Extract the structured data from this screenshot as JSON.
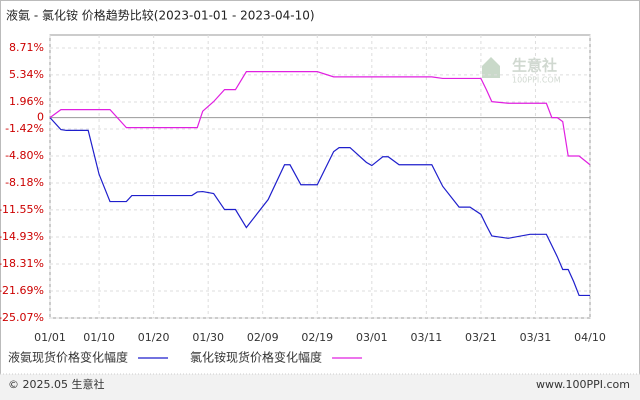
{
  "chart_data": {
    "type": "line",
    "title": "液氨 - 氯化铵 价格趋势比较(2023-01-01 - 2023-04-10)",
    "x": [
      0,
      2,
      3,
      7,
      9,
      11,
      14,
      15,
      24,
      26,
      27,
      28,
      30,
      32,
      34,
      36,
      38,
      40,
      43,
      44,
      46,
      49,
      52,
      53,
      55,
      58,
      59,
      61,
      62,
      64,
      70,
      72,
      75,
      77,
      79,
      80,
      81,
      84,
      88,
      91,
      92,
      93,
      94,
      95,
      96,
      97,
      99
    ],
    "series": [
      {
        "name": "液氨现货价格变化幅度",
        "color": "#1f1fcc",
        "values": [
          0,
          -1.5,
          -1.6,
          -1.6,
          -7.1,
          -10.5,
          -10.5,
          -9.75,
          -9.75,
          -9.75,
          -9.3,
          -9.25,
          -9.5,
          -11.5,
          -11.5,
          -13.75,
          -12,
          -10.25,
          -5.9,
          -5.9,
          -8.4,
          -8.4,
          -4.25,
          -3.75,
          -3.75,
          -5.6,
          -6,
          -4.9,
          -4.9,
          -5.9,
          -5.9,
          -8.6,
          -11.2,
          -11.2,
          -12.1,
          -13.5,
          -14.8,
          -15.1,
          -14.6,
          -14.6,
          -16,
          -17.4,
          -19,
          -19,
          -20.5,
          -22.25,
          -22.25
        ]
      },
      {
        "name": "氯化铵现货价格变化幅度",
        "color": "#e020e0",
        "values": [
          0,
          1.0,
          1.0,
          1.0,
          1.0,
          1.0,
          -1.25,
          -1.25,
          -1.25,
          -1.25,
          -1.25,
          0.8,
          2.0,
          3.5,
          3.5,
          5.75,
          5.75,
          5.75,
          5.75,
          5.75,
          5.75,
          5.75,
          5.1,
          5.1,
          5.1,
          5.1,
          5.1,
          5.1,
          5.1,
          5.1,
          5.1,
          4.9,
          4.9,
          4.9,
          4.9,
          3.5,
          2.0,
          1.8,
          1.8,
          1.8,
          0,
          0,
          -0.5,
          -4.8,
          -4.8,
          -4.8,
          -5.9
        ]
      }
    ],
    "xlim": [
      0,
      99
    ],
    "xticks": [
      {
        "value": 0,
        "label": "01/01"
      },
      {
        "value": 9,
        "label": "01/10"
      },
      {
        "value": 19,
        "label": "01/20"
      },
      {
        "value": 29,
        "label": "01/30"
      },
      {
        "value": 39,
        "label": "02/09"
      },
      {
        "value": 49,
        "label": "02/19"
      },
      {
        "value": 59,
        "label": "03/01"
      },
      {
        "value": 69,
        "label": "03/11"
      },
      {
        "value": 79,
        "label": "03/21"
      },
      {
        "value": 89,
        "label": "03/31"
      },
      {
        "value": 99,
        "label": "04/10"
      }
    ],
    "ylim": [
      -25.07,
      8.71
    ],
    "yticks": [
      {
        "value": 8.71,
        "label": "8.71%"
      },
      {
        "value": 5.34,
        "label": "5.34%"
      },
      {
        "value": 1.96,
        "label": "1.96%"
      },
      0,
      {
        "value": -1.42,
        "label": "-1.42%"
      },
      {
        "value": -4.8,
        "label": "-4.80%"
      },
      {
        "value": -8.18,
        "label": "-8.18%"
      },
      {
        "value": -11.55,
        "label": "-11.55%"
      },
      {
        "value": -14.93,
        "label": "-14.93%"
      },
      {
        "value": -18.31,
        "label": "-18.31%"
      },
      {
        "value": -21.69,
        "label": "-21.69%"
      },
      {
        "value": -25.07,
        "label": "-25.07%"
      }
    ],
    "grid": true,
    "watermark": {
      "name": "生意社",
      "site": "100PPI.COM"
    },
    "footer": {
      "copyright": "© 2025.05 生意社",
      "site": "www.100PPI.com"
    }
  }
}
